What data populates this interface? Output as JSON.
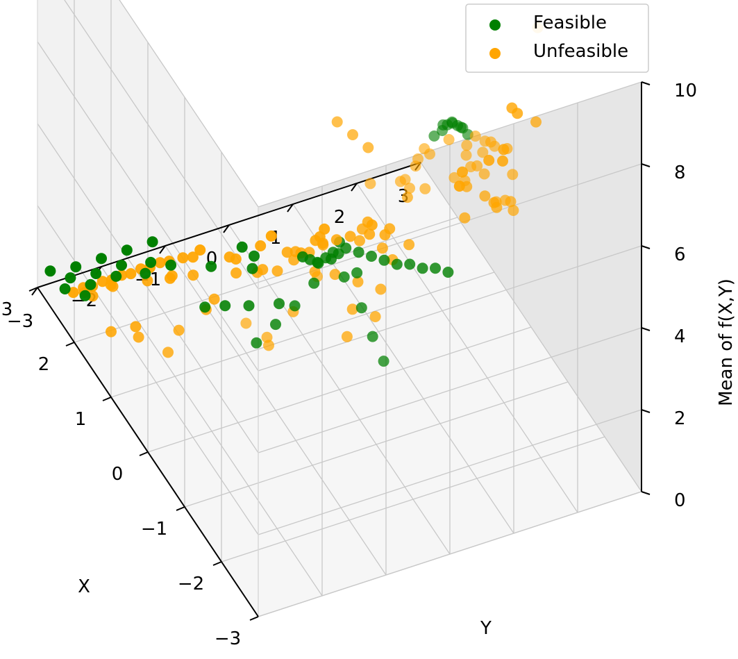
{
  "chart_data": {
    "type": "scatter",
    "title": "",
    "xlabel": "X",
    "ylabel": "Y",
    "zlabel": "Mean of f(X,Y)",
    "xlim": [
      -3,
      3
    ],
    "ylim": [
      -3,
      3
    ],
    "zlim": [
      0,
      10
    ],
    "x_ticks": [
      "−3",
      "−2",
      "−1",
      "0",
      "1",
      "2",
      "3"
    ],
    "y_ticks": [
      "−3",
      "−2",
      "−1",
      "0",
      "1",
      "2",
      "3"
    ],
    "z_ticks": [
      "0",
      "2",
      "4",
      "6",
      "8",
      "10"
    ],
    "grid": true,
    "legend_position": "top-right",
    "series": [
      {
        "name": "Feasible",
        "color": "#008000",
        "points": [
          [
            -3.0,
            -0.12,
            10.4
          ],
          [
            -3.0,
            -0.04,
            10.5
          ],
          [
            -3.0,
            0.04,
            10.5
          ],
          [
            -3.0,
            0.12,
            10.4
          ],
          [
            -3.0,
            0.2,
            10.3
          ],
          [
            -3.0,
            0.28,
            10.1
          ],
          [
            -2.92,
            -0.2,
            10.2
          ],
          [
            -2.92,
            -0.06,
            10.4
          ],
          [
            -2.92,
            0.08,
            10.4
          ],
          [
            -2.92,
            0.22,
            10.2
          ],
          [
            0.0,
            -0.1,
            3.4
          ],
          [
            0.0,
            0.0,
            3.6
          ],
          [
            0.0,
            0.1,
            3.4
          ],
          [
            0.0,
            0.3,
            3.2
          ],
          [
            0.0,
            0.5,
            3.0
          ],
          [
            0.0,
            0.7,
            2.8
          ],
          [
            0.0,
            0.9,
            2.6
          ],
          [
            0.0,
            1.1,
            2.5
          ],
          [
            0.0,
            1.3,
            2.3
          ],
          [
            0.0,
            1.5,
            2.2
          ],
          [
            0.0,
            1.7,
            2.0
          ],
          [
            0.2,
            -0.1,
            3.0
          ],
          [
            0.2,
            0.1,
            3.0
          ],
          [
            0.4,
            -0.1,
            2.6
          ],
          [
            0.4,
            0.1,
            2.6
          ],
          [
            0.6,
            0.0,
            2.3
          ],
          [
            0.8,
            0.0,
            2.1
          ],
          [
            1.0,
            0.0,
            1.9
          ],
          [
            -0.3,
            -0.1,
            3.2
          ],
          [
            -0.3,
            0.1,
            3.2
          ],
          [
            -0.6,
            0.0,
            2.8
          ],
          [
            -0.9,
            0.0,
            2.5
          ],
          [
            -1.2,
            0.0,
            2.3
          ],
          [
            0.0,
            -0.4,
            2.8
          ],
          [
            0.0,
            -0.7,
            2.4
          ],
          [
            0.0,
            -1.0,
            2.1
          ],
          [
            0.0,
            -1.3,
            1.8
          ],
          [
            0.6,
            -0.6,
            1.6
          ],
          [
            0.9,
            -0.9,
            1.3
          ],
          [
            1.2,
            -1.1,
            1.0
          ],
          [
            1.4,
            -1.3,
            0.8
          ],
          [
            1.5,
            -0.5,
            1.2
          ],
          [
            1.8,
            -0.3,
            1.0
          ],
          [
            2.1,
            -0.8,
            0.6
          ],
          [
            2.3,
            -0.2,
            0.5
          ],
          [
            2.6,
            -2.8,
            0.4
          ],
          [
            2.8,
            -2.6,
            0.3
          ],
          [
            2.6,
            -2.4,
            0.3
          ],
          [
            3.0,
            -2.8,
            0.3
          ],
          [
            3.0,
            -2.4,
            0.2
          ],
          [
            2.8,
            -2.2,
            0.2
          ],
          [
            3.0,
            -2.0,
            0.2
          ],
          [
            2.6,
            -2.0,
            0.3
          ],
          [
            2.8,
            -1.8,
            0.2
          ],
          [
            3.0,
            -1.6,
            0.2
          ],
          [
            2.5,
            -1.6,
            0.3
          ],
          [
            2.7,
            -1.4,
            0.2
          ],
          [
            3.0,
            -1.2,
            0.2
          ],
          [
            2.4,
            -2.6,
            0.4
          ],
          [
            2.5,
            -1.2,
            0.3
          ]
        ]
      },
      {
        "name": "Unfeasible",
        "color": "#ffa500",
        "points": [
          [
            -3.0,
            -0.5,
            9.9
          ],
          [
            -3.0,
            -0.4,
            10.1
          ],
          [
            -3.0,
            0.4,
            10.0
          ],
          [
            -3.0,
            0.55,
            9.8
          ],
          [
            -3.0,
            0.7,
            9.6
          ],
          [
            -3.0,
            -0.7,
            9.5
          ],
          [
            -2.85,
            -0.45,
            9.5
          ],
          [
            -2.85,
            0.35,
            9.6
          ],
          [
            -2.85,
            0.6,
            9.3
          ],
          [
            -2.8,
            -0.2,
            9.6
          ],
          [
            -2.8,
            0.1,
            9.8
          ],
          [
            -2.75,
            0.4,
            9.2
          ],
          [
            -2.7,
            -0.6,
            9.0
          ],
          [
            -2.7,
            0.5,
            8.8
          ],
          [
            -2.6,
            -0.4,
            8.6
          ],
          [
            -2.6,
            0.3,
            8.5
          ],
          [
            -2.55,
            0.9,
            9.0
          ],
          [
            -2.5,
            -0.1,
            8.3
          ],
          [
            -2.45,
            0.55,
            8.1
          ],
          [
            -2.4,
            -0.9,
            8.7
          ],
          [
            -2.35,
            0.8,
            8.2
          ],
          [
            -2.3,
            1.3,
            8.3
          ],
          [
            -2.2,
            1.0,
            7.7
          ],
          [
            -2.1,
            1.5,
            7.3
          ],
          [
            -2.0,
            1.3,
            6.6
          ],
          [
            -1.9,
            1.5,
            6.4
          ],
          [
            -1.7,
            1.7,
            6.0
          ],
          [
            -1.6,
            1.8,
            5.6
          ],
          [
            -1.5,
            -0.9,
            9.0
          ],
          [
            -1.4,
            -0.6,
            8.4
          ],
          [
            -1.3,
            -0.3,
            7.8
          ],
          [
            -1.5,
            0.2,
            6.6
          ],
          [
            -1.2,
            1.3,
            5.9
          ],
          [
            -1.0,
            1.7,
            5.2
          ],
          [
            -0.9,
            1.9,
            4.8
          ],
          [
            -0.8,
            2.0,
            4.5
          ],
          [
            -0.8,
            1.5,
            4.5
          ],
          [
            -2.0,
            -1.5,
            6.2
          ],
          [
            -1.8,
            -2.5,
            5.3
          ],
          [
            -1.5,
            -2.0,
            4.3
          ],
          [
            -1.2,
            -1.8,
            3.6
          ],
          [
            -1.0,
            -1.3,
            3.9
          ],
          [
            -0.5,
            0.8,
            3.8
          ],
          [
            -0.3,
            0.5,
            3.6
          ],
          [
            -0.2,
            -0.5,
            3.4
          ],
          [
            -0.1,
            0.3,
            3.9
          ],
          [
            0.1,
            0.5,
            3.7
          ],
          [
            0.2,
            0.9,
            3.2
          ],
          [
            0.3,
            -0.3,
            3.1
          ],
          [
            0.4,
            0.4,
            3.0
          ],
          [
            0.5,
            -0.4,
            2.9
          ],
          [
            0.6,
            0.3,
            2.7
          ],
          [
            0.7,
            -0.2,
            2.5
          ],
          [
            0.8,
            0.2,
            2.4
          ],
          [
            0.9,
            -0.3,
            2.3
          ],
          [
            1.0,
            0.2,
            2.2
          ],
          [
            0.3,
            -0.8,
            2.9
          ],
          [
            0.5,
            -1.0,
            2.7
          ],
          [
            0.7,
            -0.8,
            2.4
          ],
          [
            0.9,
            -1.1,
            2.2
          ],
          [
            -0.4,
            -0.3,
            3.5
          ],
          [
            -0.5,
            0.0,
            3.3
          ],
          [
            -0.6,
            0.3,
            3.1
          ],
          [
            -0.7,
            -0.2,
            3.0
          ],
          [
            -0.8,
            0.1,
            2.8
          ],
          [
            -0.9,
            -0.4,
            2.7
          ],
          [
            -0.2,
            0.2,
            3.8
          ],
          [
            -0.4,
            0.6,
            3.4
          ],
          [
            0.1,
            -0.2,
            3.5
          ],
          [
            0.2,
            -0.6,
            3.2
          ],
          [
            0.4,
            0.7,
            2.9
          ],
          [
            0.5,
            1.0,
            2.6
          ],
          [
            -1.0,
            2.5,
            6.6
          ],
          [
            -0.7,
            2.7,
            8.4
          ],
          [
            -0.4,
            2.9,
            9.5
          ],
          [
            0.0,
            2.7,
            5.5
          ],
          [
            0.2,
            2.9,
            5.0
          ],
          [
            0.4,
            2.8,
            3.9
          ],
          [
            0.6,
            2.9,
            3.3
          ],
          [
            0.8,
            2.8,
            3.1
          ],
          [
            1.0,
            2.5,
            2.7
          ],
          [
            1.6,
            2.8,
            1.4
          ],
          [
            1.2,
            1.2,
            1.8
          ],
          [
            1.4,
            0.5,
            1.6
          ],
          [
            1.6,
            -0.7,
            1.4
          ],
          [
            1.8,
            0.8,
            1.1
          ],
          [
            2.0,
            -1.5,
            0.8
          ],
          [
            2.2,
            0.2,
            0.7
          ],
          [
            2.4,
            -0.8,
            0.6
          ],
          [
            1.2,
            -2.5,
            1.2
          ],
          [
            1.0,
            -3.0,
            1.6
          ],
          [
            0.6,
            -2.8,
            1.9
          ],
          [
            0.2,
            -2.4,
            2.4
          ],
          [
            -0.2,
            -2.8,
            2.6
          ],
          [
            0.5,
            -1.8,
            2.2
          ],
          [
            0.8,
            -1.5,
            1.9
          ],
          [
            2.2,
            -2.9,
            0.9
          ],
          [
            2.2,
            -2.6,
            0.9
          ],
          [
            2.2,
            -2.3,
            0.9
          ],
          [
            2.2,
            -2.0,
            0.9
          ],
          [
            2.2,
            -1.7,
            0.9
          ],
          [
            2.2,
            -1.4,
            0.9
          ],
          [
            2.1,
            -2.8,
            1.1
          ],
          [
            2.1,
            -2.5,
            1.1
          ],
          [
            2.1,
            -2.2,
            1.1
          ],
          [
            2.1,
            -1.9,
            1.1
          ],
          [
            2.1,
            -1.6,
            1.1
          ],
          [
            2.0,
            -1.3,
            1.2
          ],
          [
            1.9,
            -2.9,
            1.3
          ],
          [
            1.9,
            -1.2,
            1.3
          ],
          [
            1.7,
            -2.6,
            1.6
          ],
          [
            1.6,
            -1.7,
            1.5
          ],
          [
            1.5,
            -3.0,
            1.8
          ],
          [
            1.4,
            -2.2,
            1.9
          ],
          [
            1.2,
            -1.6,
            2.0
          ],
          [
            1.3,
            -2.8,
            2.2
          ],
          [
            1.6,
            -0.8,
            1.5
          ],
          [
            1.8,
            -0.2,
            1.2
          ]
        ]
      }
    ]
  }
}
